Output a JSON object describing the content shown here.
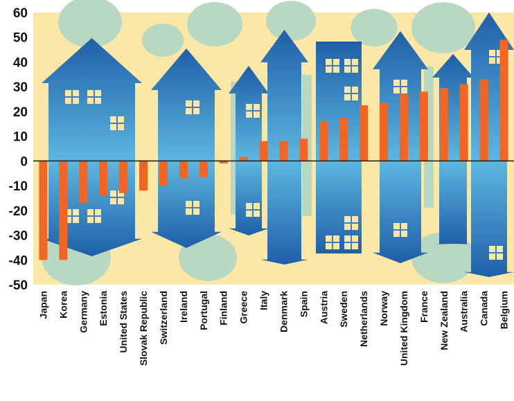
{
  "chart_data": {
    "type": "bar",
    "title": "",
    "xlabel": "",
    "ylabel": "",
    "ylim": [
      -50,
      60
    ],
    "yticks": [
      60,
      50,
      40,
      30,
      20,
      10,
      0,
      -10,
      -20,
      -30,
      -40,
      -50
    ],
    "grid": false,
    "legend": "none",
    "categories": [
      "Japan",
      "Korea",
      "Germany",
      "Estonia",
      "United States",
      "Slovak Republic",
      "Switzerland",
      "Ireland",
      "Portugal",
      "Finland",
      "Greece",
      "Italy",
      "Denmark",
      "Spain",
      "Austria",
      "Sweden",
      "Netherlands",
      "Norway",
      "United Kingdom",
      "France",
      "New Zealand",
      "Australia",
      "Canada",
      "Belgium"
    ],
    "values": [
      -40,
      -40,
      -17,
      -14,
      -13,
      -12,
      -10,
      -7,
      -6.5,
      -1,
      1.5,
      8,
      8,
      9,
      16,
      17.5,
      22.5,
      23.5,
      27,
      28,
      29.5,
      31,
      33,
      49
    ],
    "colors": {
      "bar": "#f26522",
      "background": "#fbe7a6",
      "house_dark": "#1f5fa8",
      "house_light": "#5db7e0",
      "tree": "#b9d8c2",
      "window": "#fbe7a6"
    }
  }
}
